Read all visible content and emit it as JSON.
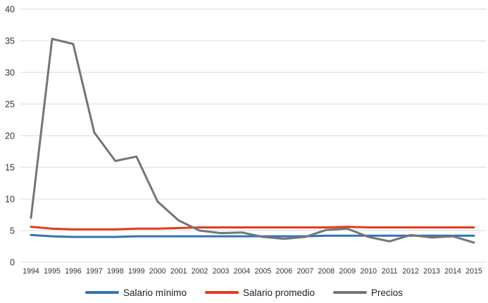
{
  "page": {
    "background_color": "#ffffff"
  },
  "chart_data": {
    "type": "line",
    "title": "",
    "xlabel": "",
    "ylabel": "",
    "categories": [
      1994,
      1995,
      1996,
      1997,
      1998,
      1999,
      2000,
      2001,
      2002,
      2003,
      2004,
      2005,
      2006,
      2007,
      2008,
      2009,
      2010,
      2011,
      2012,
      2013,
      2014,
      2015
    ],
    "series": [
      {
        "name": "Salario mínimo",
        "color": "#2e75b6",
        "values": [
          4.3,
          4.1,
          4.0,
          4.0,
          4.0,
          4.1,
          4.1,
          4.1,
          4.1,
          4.1,
          4.1,
          4.1,
          4.1,
          4.1,
          4.2,
          4.2,
          4.2,
          4.2,
          4.2,
          4.2,
          4.2,
          4.2
        ]
      },
      {
        "name": "Salario promedio",
        "color": "#e23b1d",
        "values": [
          5.6,
          5.3,
          5.2,
          5.2,
          5.2,
          5.3,
          5.3,
          5.4,
          5.5,
          5.5,
          5.5,
          5.5,
          5.5,
          5.5,
          5.5,
          5.6,
          5.5,
          5.5,
          5.5,
          5.5,
          5.5,
          5.5
        ]
      },
      {
        "name": "Precios",
        "color": "#757575",
        "values": [
          7.0,
          35.3,
          34.5,
          20.5,
          16.0,
          16.7,
          9.6,
          6.6,
          5.0,
          4.6,
          4.7,
          4.0,
          3.7,
          4.0,
          5.1,
          5.3,
          4.0,
          3.3,
          4.3,
          3.9,
          4.1,
          3.1
        ]
      }
    ],
    "ylim": [
      0,
      40
    ],
    "y_ticks": [
      0,
      5,
      10,
      15,
      20,
      25,
      30,
      35,
      40
    ],
    "grid": true,
    "gridline_color": "#d9d9d9",
    "axis_text_color": "#333333",
    "legend_position": "bottom"
  },
  "legend": {
    "items": [
      {
        "label": "Salario mínimo",
        "color": "#2e75b6"
      },
      {
        "label": "Salario promedio",
        "color": "#e23b1d"
      },
      {
        "label": "Precios",
        "color": "#757575"
      }
    ]
  }
}
